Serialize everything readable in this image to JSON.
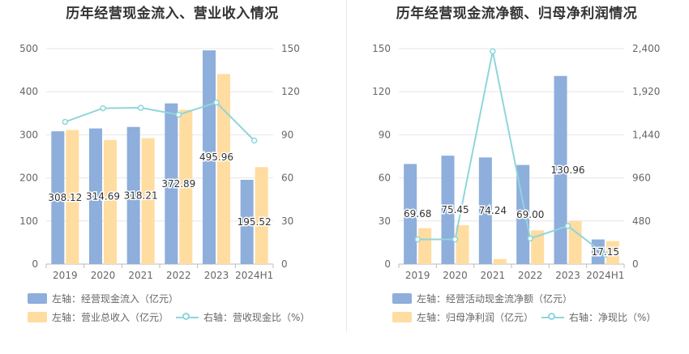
{
  "colors": {
    "bar1": "#8eaedc",
    "bar2": "#ffdca0",
    "line": "#8fd6db",
    "grid": "#e6e6e6",
    "axis": "#bbbbbb"
  },
  "chart_data": [
    {
      "type": "bar",
      "title": "历年经营现金流入、营业收入情况",
      "categories": [
        "2019",
        "2020",
        "2021",
        "2022",
        "2023",
        "2024H1"
      ],
      "left_axis": {
        "ticks": [
          "0",
          "100",
          "200",
          "300",
          "400",
          "500"
        ],
        "ylim": [
          0,
          500
        ]
      },
      "right_axis": {
        "ticks": [
          "0",
          "30",
          "60",
          "90",
          "120",
          "150"
        ],
        "ylim": [
          0,
          150
        ]
      },
      "series": [
        {
          "name": "左轴：经营现金流入（亿元）",
          "type": "bar",
          "axis": "left",
          "values": [
            308.12,
            314.69,
            318.21,
            372.89,
            495.96,
            195.52
          ],
          "labels": [
            "308.12",
            "314.69",
            "318.21",
            "372.89",
            "495.96",
            "195.52"
          ]
        },
        {
          "name": "左轴：营业总收入（亿元）",
          "type": "bar",
          "axis": "left",
          "values": [
            311,
            288,
            292,
            358,
            441,
            225
          ]
        },
        {
          "name": "右轴：营收现金比（%）",
          "type": "line",
          "axis": "right",
          "values": [
            99,
            108.5,
            108.8,
            104,
            112.5,
            86
          ]
        }
      ],
      "legend": [
        "左轴：经营现金流入（亿元）",
        "左轴：营业总收入（亿元）",
        "右轴：营收现金比（%）"
      ]
    },
    {
      "type": "bar",
      "title": "历年经营现金流净额、归母净利润情况",
      "categories": [
        "2019",
        "2020",
        "2021",
        "2022",
        "2023",
        "2024H1"
      ],
      "left_axis": {
        "ticks": [
          "0",
          "30",
          "60",
          "90",
          "120",
          "150"
        ],
        "ylim": [
          0,
          150
        ]
      },
      "right_axis": {
        "ticks": [
          "0",
          "480",
          "960",
          "1,440",
          "1,920",
          "2,400"
        ],
        "ylim": [
          0,
          2400
        ]
      },
      "series": [
        {
          "name": "左轴：经营活动现金流净额（亿元）",
          "type": "bar",
          "axis": "left",
          "values": [
            69.68,
            75.45,
            74.24,
            69.0,
            130.96,
            17.15
          ],
          "labels": [
            "69.68",
            "75.45",
            "74.24",
            "69.00",
            "130.96",
            "17.15"
          ]
        },
        {
          "name": "左轴：归母净利润（亿元）",
          "type": "bar",
          "axis": "left",
          "values": [
            25,
            27,
            3.5,
            23.5,
            30,
            16
          ]
        },
        {
          "name": "右轴：净现比（%）",
          "type": "line",
          "axis": "right",
          "values": [
            275,
            275,
            2370,
            285,
            425,
            105
          ]
        }
      ],
      "legend": [
        "左轴：经营活动现金流净额（亿元）",
        "左轴：归母净利润（亿元）",
        "右轴：净现比（%）"
      ]
    }
  ]
}
